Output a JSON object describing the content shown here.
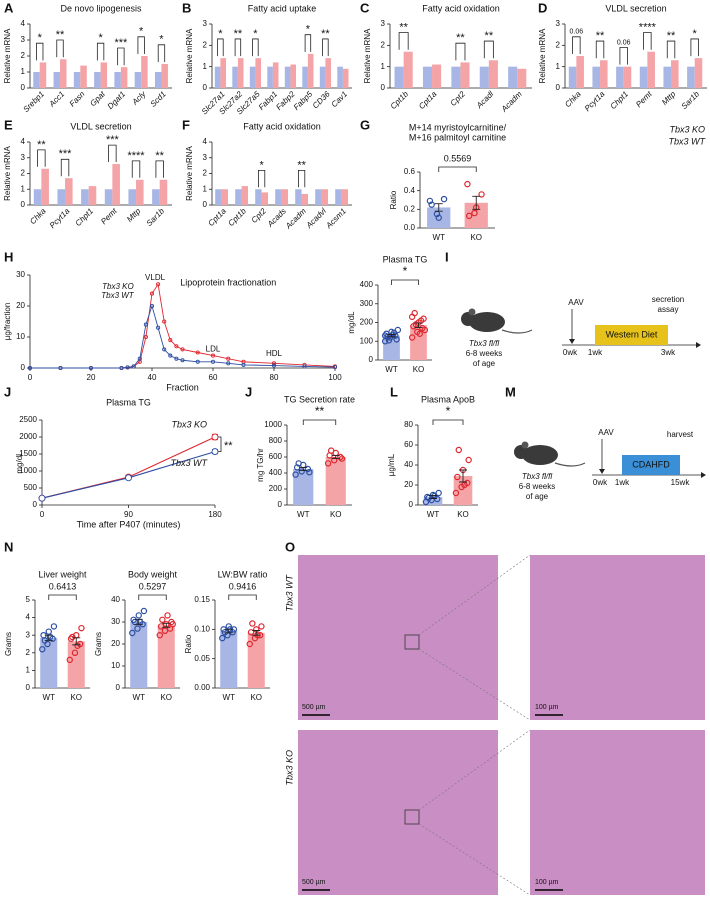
{
  "panel_labels": [
    "A",
    "B",
    "C",
    "D",
    "E",
    "F",
    "G",
    "H",
    "I",
    "J",
    "J",
    "L",
    "M",
    "N",
    "O"
  ],
  "legend": [
    {
      "name": "Tbx3 KO",
      "color": "#e0262e"
    },
    {
      "name": "Tbx3 WT",
      "color": "#2c4ea3"
    }
  ],
  "chart_data": [
    {
      "type": "grouped_bar",
      "title": "De novo lipogenesis",
      "ylabel": "Relative mRNA",
      "categories": [
        "Srebp1",
        "Acc1",
        "Fasn",
        "Gpat",
        "Dgat1",
        "Acly",
        "Scd1"
      ],
      "series": [
        {
          "color": "#a7b6e4",
          "values": [
            1,
            1,
            1,
            1,
            1,
            1,
            1
          ]
        },
        {
          "color": "#f4a4a7",
          "values": [
            1.6,
            1.8,
            1.4,
            1.6,
            1.3,
            2.0,
            1.5
          ]
        }
      ],
      "sig": [
        "*",
        "**",
        null,
        "*",
        "***",
        "*",
        "*"
      ],
      "ylim": [
        0,
        4
      ],
      "yticks": [
        0,
        1,
        2,
        3,
        4
      ]
    },
    {
      "type": "grouped_bar",
      "title": "Fatty acid uptake",
      "ylabel": "Relative mRNA",
      "categories": [
        "Slc27a1",
        "Slc27a2",
        "Slc27a5",
        "Fabp1",
        "Fabp2",
        "Fabp5",
        "CD36",
        "Cav1"
      ],
      "series": [
        {
          "color": "#a7b6e4",
          "values": [
            1,
            1,
            1,
            1,
            1,
            1,
            1,
            1
          ]
        },
        {
          "color": "#f4a4a7",
          "values": [
            1.4,
            1.4,
            1.4,
            1.2,
            1.1,
            1.6,
            1.4,
            0.9
          ]
        }
      ],
      "sig": [
        "*",
        "**",
        "*",
        null,
        null,
        "*",
        "**",
        null
      ],
      "ylim": [
        0,
        3
      ],
      "yticks": [
        0,
        1,
        2,
        3
      ]
    },
    {
      "type": "grouped_bar",
      "title": "Fatty acid oxidation",
      "ylabel": "Relative mRNA",
      "categories": [
        "Cpt1b",
        "Cpt1a",
        "Cpt2",
        "Acadl",
        "Acadm"
      ],
      "series": [
        {
          "color": "#a7b6e4",
          "values": [
            1,
            1,
            1,
            1,
            1
          ]
        },
        {
          "color": "#f4a4a7",
          "values": [
            1.7,
            1.1,
            1.2,
            1.3,
            0.9
          ]
        }
      ],
      "sig": [
        "**",
        null,
        "**",
        "**",
        null
      ],
      "ylim": [
        0,
        3
      ],
      "yticks": [
        0,
        1,
        2,
        3
      ]
    },
    {
      "type": "grouped_bar",
      "title": "VLDL secretion",
      "ylabel": "Relative mRNA",
      "categories": [
        "Chka",
        "Pcyt1a",
        "Chpt1",
        "Pemt",
        "Mttp",
        "Sar1b"
      ],
      "series": [
        {
          "color": "#a7b6e4",
          "values": [
            1,
            1,
            1,
            1,
            1,
            1
          ]
        },
        {
          "color": "#f4a4a7",
          "values": [
            1.5,
            1.3,
            1.0,
            1.7,
            1.3,
            1.4
          ]
        }
      ],
      "sig": [
        "0.06",
        "**",
        "0.06",
        "****",
        "**",
        "*"
      ],
      "ylim": [
        0,
        3
      ],
      "yticks": [
        0,
        1,
        2,
        3
      ]
    },
    {
      "type": "grouped_bar",
      "title": "VLDL secretion",
      "ylabel": "Relative mRNA",
      "categories": [
        "Chka",
        "Pcyt1a",
        "Chpt1",
        "Pemt",
        "Mttp",
        "Sar1b"
      ],
      "series": [
        {
          "color": "#a7b6e4",
          "values": [
            1,
            1,
            1,
            1,
            1,
            1
          ]
        },
        {
          "color": "#f4a4a7",
          "values": [
            2.3,
            1.7,
            1.2,
            2.6,
            1.6,
            1.6
          ]
        }
      ],
      "sig": [
        "**",
        "***",
        null,
        "***",
        "****",
        "**"
      ],
      "ylim": [
        0,
        4
      ],
      "yticks": [
        0,
        1,
        2,
        3,
        4
      ]
    },
    {
      "type": "grouped_bar",
      "title": "Fatty acid oxidation",
      "ylabel": "Relative mRNA",
      "categories": [
        "Cpt1a",
        "Cpt1b",
        "Cpt2",
        "Acads",
        "Acadm",
        "Acadvl",
        "Acsm1"
      ],
      "series": [
        {
          "color": "#a7b6e4",
          "values": [
            1,
            1,
            1,
            1,
            1,
            1,
            1
          ]
        },
        {
          "color": "#f4a4a7",
          "values": [
            1.0,
            1.2,
            0.8,
            1.0,
            0.7,
            1.0,
            1.0
          ]
        }
      ],
      "sig": [
        null,
        null,
        "*",
        null,
        "**",
        null,
        null
      ],
      "ylim": [
        0,
        4
      ],
      "yticks": [
        0,
        1,
        2,
        3,
        4
      ]
    },
    {
      "type": "bar",
      "title": [
        "M+14 myristoylcarnitine/",
        "M+16 palmitoyl carnitine"
      ],
      "ylabel": "Ratio",
      "categories": [
        "WT",
        "KO"
      ],
      "values": [
        0.22,
        0.27
      ],
      "errors": [
        0.04,
        0.07
      ],
      "points": [
        [
          0.29,
          0.15,
          0.31,
          0.25,
          0.11
        ],
        [
          0.47,
          0.16,
          0.36,
          0.13,
          0.22
        ]
      ],
      "colors": [
        "#a7b6e4",
        "#f4a4a7"
      ],
      "edge_colors": [
        "#2c4ea3",
        "#e0262e"
      ],
      "annotation": "0.5569",
      "ylim": [
        0,
        0.6
      ],
      "yticks": [
        {
          "value": 0,
          "label": "0.0"
        },
        {
          "value": 0.2,
          "label": "0.2"
        },
        {
          "value": 0.4,
          "label": "0.4"
        },
        {
          "value": 0.6,
          "label": "0.6"
        }
      ]
    },
    {
      "type": "line",
      "title": "Lipoprotein fractionation",
      "ylabel": "µg/fraction",
      "xlabel": "Fraction",
      "x": [
        0,
        10,
        20,
        30,
        32,
        34,
        36,
        38,
        40,
        42,
        44,
        46,
        48,
        50,
        55,
        60,
        65,
        70,
        80,
        90,
        100
      ],
      "series": [
        {
          "name": "Tbx3 KO",
          "color": "#e0262e",
          "values": [
            0,
            0,
            0,
            0,
            0.2,
            0.5,
            2,
            10,
            24,
            27,
            15,
            9,
            7,
            6,
            5,
            4,
            3,
            2,
            1.5,
            1,
            0.5
          ]
        },
        {
          "name": "Tbx3 WT",
          "color": "#2c4ea3",
          "values": [
            0,
            0,
            0,
            0,
            0.2,
            0.5,
            3,
            14,
            20,
            13,
            6,
            4,
            3,
            2.5,
            2,
            2,
            1.5,
            1,
            0.8,
            0.5,
            0.3
          ]
        }
      ],
      "annotations": [
        "VLDL",
        "LDL",
        "HDL"
      ],
      "xlim": [
        0,
        100
      ],
      "xticks": [
        0,
        20,
        40,
        60,
        80,
        100
      ],
      "ylim": [
        0,
        30
      ],
      "yticks": [
        0,
        10,
        20,
        30
      ]
    },
    {
      "type": "bar",
      "title": "Plasma TG",
      "ylabel": "mg/dL",
      "categories": [
        "WT",
        "KO"
      ],
      "values": [
        130,
        185
      ],
      "errors": [
        6,
        12
      ],
      "points": [
        [
          100,
          120,
          130,
          140,
          150,
          110,
          125,
          135,
          160,
          105,
          145,
          130
        ],
        [
          120,
          150,
          170,
          180,
          200,
          220,
          250,
          140,
          160,
          190,
          210,
          230
        ]
      ],
      "colors": [
        "#a7b6e4",
        "#f4a4a7"
      ],
      "edge_colors": [
        "#2c4ea3",
        "#e0262e"
      ],
      "annotation": "*",
      "ylim": [
        0,
        400
      ],
      "yticks": [
        0,
        100,
        200,
        300,
        400
      ]
    },
    {
      "type": "line",
      "title": "Plasma TG",
      "ylabel": "mg/dL",
      "xlabel": "Time after P407 (minutes)",
      "x": [
        0,
        90,
        180
      ],
      "series": [
        {
          "name": "Tbx3 KO",
          "color": "#e0262e",
          "values": [
            200,
            820,
            2000
          ],
          "errors": [
            20,
            60,
            80
          ]
        },
        {
          "name": "Tbx3 WT",
          "color": "#2c4ea3",
          "values": [
            200,
            800,
            1570
          ],
          "errors": [
            20,
            50,
            60
          ]
        }
      ],
      "annotation": "**",
      "xlim": [
        0,
        180
      ],
      "xticks": [
        0,
        90,
        180
      ],
      "ylim": [
        0,
        2500
      ],
      "yticks": [
        0,
        500,
        1000,
        1500,
        2000,
        2500
      ]
    },
    {
      "type": "bar",
      "title": "TG Secretion rate",
      "ylabel": "mg TG/hr",
      "categories": [
        "WT",
        "KO"
      ],
      "values": [
        450,
        600
      ],
      "errors": [
        20,
        20
      ],
      "points": [
        [
          380,
          420,
          450,
          470,
          500,
          410,
          520
        ],
        [
          520,
          560,
          600,
          620,
          650,
          580,
          680
        ]
      ],
      "colors": [
        "#a7b6e4",
        "#f4a4a7"
      ],
      "edge_colors": [
        "#2c4ea3",
        "#e0262e"
      ],
      "annotation": "**",
      "ylim": [
        0,
        1000
      ],
      "yticks": [
        0,
        200,
        400,
        600,
        800,
        1000
      ]
    },
    {
      "type": "bar",
      "title": "Plasma ApoB",
      "ylabel": "µg/mL",
      "categories": [
        "WT",
        "KO"
      ],
      "values": [
        8,
        29
      ],
      "errors": [
        1.5,
        6
      ],
      "points": [
        [
          3,
          5,
          6,
          8,
          10,
          12,
          7,
          9
        ],
        [
          12,
          18,
          22,
          28,
          35,
          45,
          55,
          20
        ]
      ],
      "colors": [
        "#a7b6e4",
        "#f4a4a7"
      ],
      "edge_colors": [
        "#2c4ea3",
        "#e0262e"
      ],
      "annotation": "*",
      "ylim": [
        0,
        80
      ],
      "yticks": [
        0,
        20,
        40,
        60,
        80
      ]
    },
    {
      "type": "bar",
      "title": "Liver weight",
      "ylabel": "Grams",
      "categories": [
        "WT",
        "KO"
      ],
      "values": [
        2.85,
        2.65
      ],
      "errors": [
        0.15,
        0.2
      ],
      "points": [
        [
          2.2,
          2.5,
          2.8,
          3.0,
          3.2,
          3.5,
          2.7,
          2.9
        ],
        [
          1.6,
          2.0,
          2.5,
          2.8,
          3.0,
          3.4,
          2.9,
          2.4
        ]
      ],
      "colors": [
        "#a7b6e4",
        "#f4a4a7"
      ],
      "edge_colors": [
        "#2c4ea3",
        "#e0262e"
      ],
      "annotation": "0.6413",
      "ylim": [
        0,
        5
      ],
      "yticks": [
        0,
        1,
        2,
        3,
        4,
        5
      ]
    },
    {
      "type": "bar",
      "title": "Body weight",
      "ylabel": "Grams",
      "categories": [
        "WT",
        "KO"
      ],
      "values": [
        30,
        28.5
      ],
      "errors": [
        1.2,
        0.9
      ],
      "points": [
        [
          25,
          27,
          29,
          31,
          33,
          35,
          30,
          30
        ],
        [
          24,
          26,
          27,
          28,
          29,
          30,
          31,
          33,
          29
        ]
      ],
      "colors": [
        "#a7b6e4",
        "#f4a4a7"
      ],
      "edge_colors": [
        "#2c4ea3",
        "#e0262e"
      ],
      "annotation": "0.5297",
      "ylim": [
        0,
        40
      ],
      "yticks": [
        0,
        10,
        20,
        30,
        40
      ]
    },
    {
      "type": "bar",
      "title": "LW:BW ratio",
      "ylabel": "Ratio",
      "categories": [
        "WT",
        "KO"
      ],
      "values": [
        0.097,
        0.094
      ],
      "errors": [
        0.003,
        0.004
      ],
      "points": [
        [
          0.085,
          0.09,
          0.095,
          0.1,
          0.105,
          0.1,
          0.095,
          0.1
        ],
        [
          0.075,
          0.085,
          0.09,
          0.095,
          0.1,
          0.105,
          0.11,
          0.09
        ]
      ],
      "colors": [
        "#a7b6e4",
        "#f4a4a7"
      ],
      "edge_colors": [
        "#2c4ea3",
        "#e0262e"
      ],
      "annotation": "0.9416",
      "ylim": [
        0,
        0.15
      ],
      "yticks": [
        {
          "value": 0,
          "label": "0.00"
        },
        {
          "value": 0.05,
          "label": "0.05"
        },
        {
          "value": 0.1,
          "label": "0.10"
        },
        {
          "value": 0.15,
          "label": "0.15"
        }
      ]
    }
  ],
  "panel_I": {
    "aav": "AAV",
    "assay": [
      "secretion",
      "assay"
    ],
    "diet": "Western Diet",
    "timepoints": [
      "0wk",
      "1wk",
      "3wk"
    ],
    "mouse": [
      "Tbx3 fl/fl",
      "6-8 weeks",
      "of age"
    ]
  },
  "panel_M": {
    "aav": "AAV",
    "harvest": "harvest",
    "diet": "CDAHFD",
    "timepoints": [
      "0wk",
      "1wk",
      "15wk"
    ],
    "mouse": [
      "Tbx3 fl/fl",
      "6-8 weeks",
      "of age"
    ]
  },
  "panel_O": {
    "rows": [
      "Tbx3 WT",
      "Tbx3 KO"
    ],
    "scale_bars": [
      "500 µm",
      "100 µm"
    ]
  }
}
